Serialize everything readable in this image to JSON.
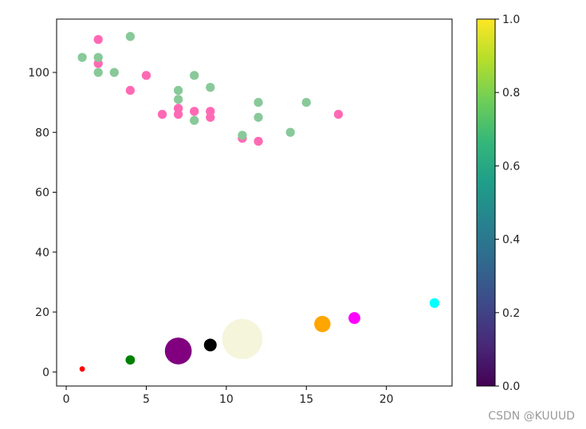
{
  "chart_data": {
    "type": "scatter",
    "xlim": [
      -0.6,
      24.1
    ],
    "ylim": [
      -4.7,
      117.8
    ],
    "xticks": [
      0,
      5,
      10,
      15,
      20
    ],
    "yticks": [
      0,
      20,
      40,
      60,
      80,
      100
    ],
    "grid": false,
    "series": [
      {
        "color": "#ff69b4",
        "size": 55,
        "points": [
          [
            2,
            111
          ],
          [
            2,
            103
          ],
          [
            4,
            94
          ],
          [
            5,
            99
          ],
          [
            6,
            86
          ],
          [
            7,
            88
          ],
          [
            7,
            86
          ],
          [
            8,
            87
          ],
          [
            9,
            87
          ],
          [
            9,
            85
          ],
          [
            11,
            78
          ],
          [
            12,
            77
          ],
          [
            17,
            86
          ]
        ]
      },
      {
        "color": "#88c999",
        "size": 55,
        "points": [
          [
            1,
            105
          ],
          [
            2,
            105
          ],
          [
            2,
            100
          ],
          [
            3,
            100
          ],
          [
            4,
            112
          ],
          [
            7,
            94
          ],
          [
            7,
            91
          ],
          [
            8,
            99
          ],
          [
            8,
            84
          ],
          [
            9,
            95
          ],
          [
            11,
            79
          ],
          [
            12,
            90
          ],
          [
            12,
            85
          ],
          [
            14,
            80
          ],
          [
            15,
            90
          ]
        ]
      },
      {
        "points": [
          {
            "x": 1,
            "y": 1,
            "size": 20,
            "color": "#ff0000"
          },
          {
            "x": 4,
            "y": 4,
            "size": 60,
            "color": "#008000"
          },
          {
            "x": 7,
            "y": 7,
            "size": 490,
            "color": "#800080"
          },
          {
            "x": 9,
            "y": 9,
            "size": 110,
            "color": "#000000"
          },
          {
            "x": 11,
            "y": 11,
            "size": 1100,
            "color": "#f5f5dc"
          },
          {
            "x": 16,
            "y": 16,
            "size": 180,
            "color": "#ffa500"
          },
          {
            "x": 18,
            "y": 18,
            "size": 95,
            "color": "#ff00ff"
          },
          {
            "x": 23,
            "y": 23,
            "size": 65,
            "color": "#00ffff"
          }
        ]
      }
    ],
    "colorbar": {
      "colormap": "viridis",
      "range": [
        0.0,
        1.0
      ],
      "ticks": [
        "0.0",
        "0.2",
        "0.4",
        "0.6",
        "0.8",
        "1.0"
      ],
      "stops": [
        "#440154",
        "#482878",
        "#3e4989",
        "#31688e",
        "#26828e",
        "#1f9e89",
        "#35b779",
        "#6ece58",
        "#b5de2b",
        "#fde725"
      ]
    }
  },
  "watermark": "CSDN @KUUUD"
}
